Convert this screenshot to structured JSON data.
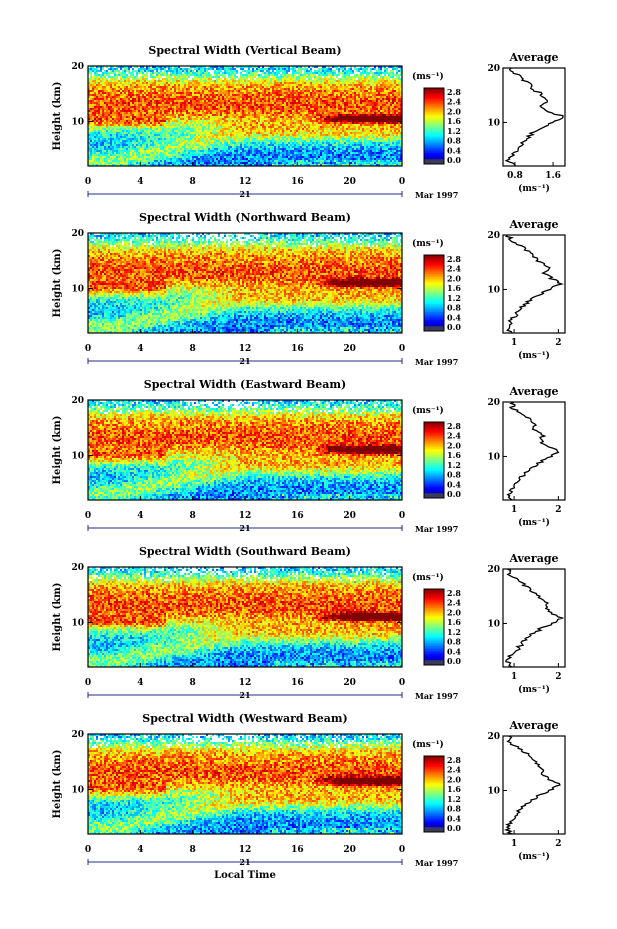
{
  "figure": {
    "date_label": "Mar 1997",
    "day_label": "21",
    "xlabel": "Local Time",
    "ylabel": "Height (km)",
    "avg_title": "Average",
    "unit_label": "(ms⁻¹)"
  },
  "chart_data": [
    {
      "type": "heatmap",
      "title": "Spectral Width (Vertical Beam)",
      "x_ticks": [
        "0",
        "4",
        "8",
        "12",
        "16",
        "20",
        "0"
      ],
      "y_ticks": [
        "20",
        "10"
      ],
      "colorbar_ticks": [
        "2.8",
        "2.4",
        "2.0",
        "1.6",
        "1.2",
        "0.8",
        "0.4",
        "0.0"
      ],
      "xlim": [
        0,
        24
      ],
      "ylim": [
        2,
        20
      ],
      "clim": [
        0,
        3.0
      ],
      "avg_x_ticks": [
        "0.8",
        "1.6"
      ],
      "avg_xlim": [
        0.55,
        1.85
      ],
      "profile": {
        "heights": [
          2,
          3,
          4,
          5,
          6,
          7,
          8,
          9,
          10,
          11,
          12,
          13,
          14,
          15,
          16,
          17,
          18,
          19,
          20
        ],
        "values": [
          0.8,
          0.65,
          0.75,
          0.85,
          0.95,
          1.05,
          1.15,
          1.35,
          1.55,
          1.85,
          1.5,
          1.35,
          1.45,
          1.38,
          1.2,
          1.1,
          0.95,
          0.8,
          0.72
        ]
      },
      "max_layer_km": 10.5
    },
    {
      "type": "heatmap",
      "title": "Spectral Width (Northward Beam)",
      "x_ticks": [
        "0",
        "4",
        "8",
        "12",
        "16",
        "20",
        "0"
      ],
      "y_ticks": [
        "20",
        "10"
      ],
      "colorbar_ticks": [
        "2.8",
        "2.4",
        "2.0",
        "1.6",
        "1.2",
        "0.8",
        "0.4",
        "0.0"
      ],
      "xlim": [
        0,
        24
      ],
      "ylim": [
        2,
        20
      ],
      "clim": [
        0,
        3.0
      ],
      "avg_x_ticks": [
        "1",
        "2"
      ],
      "avg_xlim": [
        0.75,
        2.15
      ],
      "profile": {
        "heights": [
          2,
          3,
          4,
          5,
          6,
          7,
          8,
          9,
          10,
          11,
          12,
          13,
          14,
          15,
          16,
          17,
          18,
          19,
          20
        ],
        "values": [
          0.95,
          0.85,
          0.92,
          1.0,
          1.1,
          1.2,
          1.35,
          1.55,
          1.8,
          2.05,
          1.85,
          1.7,
          1.75,
          1.6,
          1.45,
          1.3,
          1.15,
          0.95,
          0.85
        ]
      },
      "max_layer_km": 11
    },
    {
      "type": "heatmap",
      "title": "Spectral Width (Eastward Beam)",
      "x_ticks": [
        "0",
        "4",
        "8",
        "12",
        "16",
        "20",
        "0"
      ],
      "y_ticks": [
        "20",
        "10"
      ],
      "colorbar_ticks": [
        "2.8",
        "2.4",
        "2.0",
        "1.6",
        "1.2",
        "0.8",
        "0.4",
        "0.0"
      ],
      "xlim": [
        0,
        24
      ],
      "ylim": [
        2,
        20
      ],
      "clim": [
        0,
        3.0
      ],
      "avg_x_ticks": [
        "1",
        "2"
      ],
      "avg_xlim": [
        0.75,
        2.15
      ],
      "profile": {
        "heights": [
          2,
          3,
          4,
          5,
          6,
          7,
          8,
          9,
          10,
          11,
          12,
          13,
          14,
          15,
          16,
          17,
          18,
          19,
          20
        ],
        "values": [
          0.95,
          0.85,
          0.95,
          1.05,
          1.15,
          1.25,
          1.4,
          1.6,
          1.85,
          2.0,
          1.7,
          1.6,
          1.65,
          1.45,
          1.5,
          1.3,
          1.1,
          0.95,
          1.0
        ]
      },
      "max_layer_km": 11
    },
    {
      "type": "heatmap",
      "title": "Spectral Width (Southward Beam)",
      "x_ticks": [
        "0",
        "4",
        "8",
        "12",
        "16",
        "20",
        "0"
      ],
      "y_ticks": [
        "20",
        "10"
      ],
      "colorbar_ticks": [
        "2.8",
        "2.4",
        "2.0",
        "1.6",
        "1.2",
        "0.8",
        "0.4",
        "0.0"
      ],
      "xlim": [
        0,
        24
      ],
      "ylim": [
        2,
        20
      ],
      "clim": [
        0,
        3.0
      ],
      "avg_x_ticks": [
        "1",
        "2"
      ],
      "avg_xlim": [
        0.75,
        2.15
      ],
      "profile": {
        "heights": [
          2,
          3,
          4,
          5,
          6,
          7,
          8,
          9,
          10,
          11,
          12,
          13,
          14,
          15,
          16,
          17,
          18,
          19,
          20
        ],
        "values": [
          0.95,
          0.85,
          0.92,
          1.05,
          1.15,
          1.25,
          1.4,
          1.6,
          1.85,
          2.05,
          1.85,
          1.75,
          1.7,
          1.55,
          1.4,
          1.25,
          1.05,
          0.9,
          0.85
        ]
      },
      "max_layer_km": 11
    },
    {
      "type": "heatmap",
      "title": "Spectral Width (Westward Beam)",
      "x_ticks": [
        "0",
        "4",
        "8",
        "12",
        "16",
        "20",
        "0"
      ],
      "y_ticks": [
        "20",
        "10"
      ],
      "colorbar_ticks": [
        "2.8",
        "2.4",
        "2.0",
        "1.6",
        "1.2",
        "0.8",
        "0.4",
        "0.0"
      ],
      "xlim": [
        0,
        24
      ],
      "ylim": [
        2,
        20
      ],
      "clim": [
        0,
        3.0
      ],
      "avg_x_ticks": [
        "1",
        "2"
      ],
      "avg_xlim": [
        0.75,
        2.15
      ],
      "profile": {
        "heights": [
          2,
          3,
          4,
          5,
          6,
          7,
          8,
          9,
          10,
          11,
          12,
          13,
          14,
          15,
          16,
          17,
          18,
          19,
          20
        ],
        "values": [
          0.95,
          0.85,
          0.9,
          1.0,
          1.1,
          1.2,
          1.35,
          1.55,
          1.8,
          2.05,
          1.8,
          1.65,
          1.6,
          1.5,
          1.45,
          1.25,
          1.05,
          0.9,
          0.88
        ]
      },
      "max_layer_km": 11.5
    }
  ]
}
